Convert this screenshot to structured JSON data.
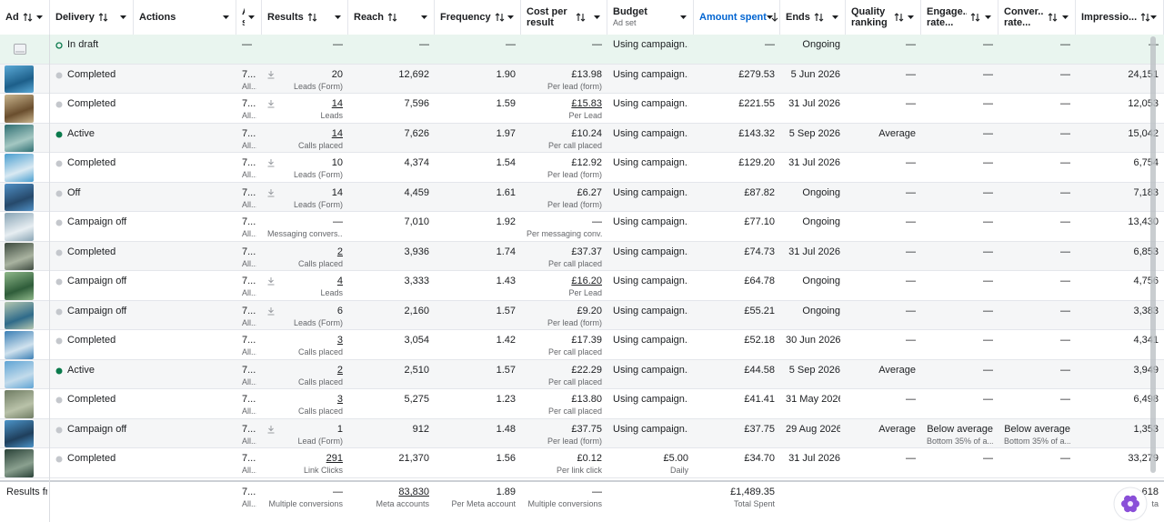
{
  "columns": [
    {
      "label": "Ad",
      "sortable": true
    },
    {
      "label": "Delivery",
      "sortable": true
    },
    {
      "label": "Actions"
    },
    {
      "label": "A... s..."
    },
    {
      "label": "Results",
      "sortable": true
    },
    {
      "label": "Reach",
      "sortable": true
    },
    {
      "label": "Frequency",
      "sortable": true
    },
    {
      "label": "Cost per result",
      "sortable": true
    },
    {
      "label": "Budget",
      "sub": "Ad set"
    },
    {
      "label": "Amount spent",
      "sort": "descending"
    },
    {
      "label": "Ends",
      "sortable": true
    },
    {
      "label": "Quality ranking",
      "sortable": true
    },
    {
      "label": "Engage... rate...",
      "sortable": true
    },
    {
      "label": "Conver... rate...",
      "sortable": true
    },
    {
      "label": "Impressio...",
      "sortable": true
    }
  ],
  "rows": [
    {
      "delivery": "In draft",
      "ad_id": "—",
      "results": "—",
      "reach": "—",
      "frequency": "—",
      "cost": "—",
      "budget": "Using campaign...",
      "amount": "—",
      "ends": "Ongoing",
      "quality": "—",
      "engage": "—",
      "conver": "—",
      "impressions": "—"
    },
    {
      "delivery": "Completed",
      "ad_id": "7...",
      "ad_id_sub": "All...",
      "results": "20",
      "results_sub": "Leads (Form)",
      "reach": "12,692",
      "frequency": "1.90",
      "cost": "£13.98",
      "cost_sub": "Per lead (form)",
      "budget": "Using campaign...",
      "amount": "£279.53",
      "ends": "5 Jun 2026",
      "quality": "—",
      "engage": "—",
      "conver": "—",
      "impressions": "24,151"
    },
    {
      "delivery": "Completed",
      "ad_id": "7...",
      "ad_id_sub": "All...",
      "results": "14",
      "results_link": true,
      "results_sub": "Leads",
      "reach": "7,596",
      "frequency": "1.59",
      "cost": "£15.83",
      "cost_link": true,
      "cost_sub": "Per Lead",
      "budget": "Using campaign...",
      "amount": "£221.55",
      "ends": "31 Jul 2026",
      "quality": "—",
      "engage": "—",
      "conver": "—",
      "impressions": "12,053"
    },
    {
      "delivery": "Active",
      "ad_id": "7...",
      "ad_id_sub": "All...",
      "results": "14",
      "results_link": true,
      "results_sub": "Calls placed",
      "reach": "7,626",
      "frequency": "1.97",
      "cost": "£10.24",
      "cost_sub": "Per call placed",
      "budget": "Using campaign...",
      "amount": "£143.32",
      "ends": "5 Sep 2026",
      "quality": "Average",
      "engage": "—",
      "conver": "—",
      "impressions": "15,042"
    },
    {
      "delivery": "Completed",
      "ad_id": "7...",
      "ad_id_sub": "All...",
      "results": "10",
      "results_sub": "Leads (Form)",
      "reach": "4,374",
      "frequency": "1.54",
      "cost": "£12.92",
      "cost_sub": "Per lead (form)",
      "budget": "Using campaign...",
      "amount": "£129.20",
      "ends": "31 Jul 2026",
      "quality": "—",
      "engage": "—",
      "conver": "—",
      "impressions": "6,754"
    },
    {
      "delivery": "Off",
      "ad_id": "7...",
      "ad_id_sub": "All...",
      "results": "14",
      "results_sub": "Leads (Form)",
      "reach": "4,459",
      "frequency": "1.61",
      "cost": "£6.27",
      "cost_sub": "Per lead (form)",
      "budget": "Using campaign...",
      "amount": "£87.82",
      "ends": "Ongoing",
      "quality": "—",
      "engage": "—",
      "conver": "—",
      "impressions": "7,183"
    },
    {
      "delivery": "Campaign off",
      "ad_id": "7...",
      "ad_id_sub": "All...",
      "results": "—",
      "results_sub": "Messaging convers...",
      "reach": "7,010",
      "frequency": "1.92",
      "cost": "—",
      "cost_sub": "Per messaging conv...",
      "budget": "Using campaign...",
      "amount": "£77.10",
      "ends": "Ongoing",
      "quality": "—",
      "engage": "—",
      "conver": "—",
      "impressions": "13,430"
    },
    {
      "delivery": "Completed",
      "ad_id": "7...",
      "ad_id_sub": "All...",
      "results": "2",
      "results_link": true,
      "results_sub": "Calls placed",
      "reach": "3,936",
      "frequency": "1.74",
      "cost": "£37.37",
      "cost_sub": "Per call placed",
      "budget": "Using campaign...",
      "amount": "£74.73",
      "ends": "31 Jul 2026",
      "quality": "—",
      "engage": "—",
      "conver": "—",
      "impressions": "6,853"
    },
    {
      "delivery": "Campaign off",
      "ad_id": "7...",
      "ad_id_sub": "All...",
      "results": "4",
      "results_link": true,
      "results_sub": "Leads",
      "reach": "3,333",
      "frequency": "1.43",
      "cost": "£16.20",
      "cost_link": true,
      "cost_sub": "Per Lead",
      "budget": "Using campaign...",
      "amount": "£64.78",
      "ends": "Ongoing",
      "quality": "—",
      "engage": "—",
      "conver": "—",
      "impressions": "4,756"
    },
    {
      "delivery": "Campaign off",
      "ad_id": "7...",
      "ad_id_sub": "All...",
      "results": "6",
      "results_sub": "Leads (Form)",
      "reach": "2,160",
      "frequency": "1.57",
      "cost": "£9.20",
      "cost_sub": "Per lead (form)",
      "budget": "Using campaign...",
      "amount": "£55.21",
      "ends": "Ongoing",
      "quality": "—",
      "engage": "—",
      "conver": "—",
      "impressions": "3,383"
    },
    {
      "delivery": "Completed",
      "ad_id": "7...",
      "ad_id_sub": "All...",
      "results": "3",
      "results_link": true,
      "results_sub": "Calls placed",
      "reach": "3,054",
      "frequency": "1.42",
      "cost": "£17.39",
      "cost_sub": "Per call placed",
      "budget": "Using campaign...",
      "amount": "£52.18",
      "ends": "30 Jun 2026",
      "quality": "—",
      "engage": "—",
      "conver": "—",
      "impressions": "4,341"
    },
    {
      "delivery": "Active",
      "ad_id": "7...",
      "ad_id_sub": "All...",
      "results": "2",
      "results_link": true,
      "results_sub": "Calls placed",
      "reach": "2,510",
      "frequency": "1.57",
      "cost": "£22.29",
      "cost_sub": "Per call placed",
      "budget": "Using campaign...",
      "amount": "£44.58",
      "ends": "5 Sep 2026",
      "quality": "Average",
      "engage": "—",
      "conver": "—",
      "impressions": "3,949"
    },
    {
      "delivery": "Completed",
      "ad_id": "7...",
      "ad_id_sub": "All...",
      "results": "3",
      "results_link": true,
      "results_sub": "Calls placed",
      "reach": "5,275",
      "frequency": "1.23",
      "cost": "£13.80",
      "cost_sub": "Per call placed",
      "budget": "Using campaign...",
      "amount": "£41.41",
      "ends": "31 May 2026",
      "quality": "—",
      "engage": "—",
      "conver": "—",
      "impressions": "6,498"
    },
    {
      "delivery": "Campaign off",
      "ad_id": "7...",
      "ad_id_sub": "All...",
      "results": "1",
      "results_sub": "Lead (Form)",
      "reach": "912",
      "frequency": "1.48",
      "cost": "£37.75",
      "cost_sub": "Per lead (form)",
      "budget": "Using campaign...",
      "amount": "£37.75",
      "ends": "29 Aug 2026",
      "quality": "Average",
      "engage": "Below average",
      "engage_sub": "Bottom 35% of a...",
      "conver": "Below average",
      "conver_sub": "Bottom 35% of a...",
      "impressions": "1,353"
    },
    {
      "delivery": "Completed",
      "ad_id": "7...",
      "ad_id_sub": "All...",
      "results": "291",
      "results_link": true,
      "results_sub": "Link Clicks",
      "reach": "21,370",
      "frequency": "1.56",
      "cost": "£0.12",
      "cost_sub": "Per link click",
      "budget": "£5.00",
      "budget_sub": "Daily",
      "amount": "£34.70",
      "ends": "31 Jul 2026",
      "quality": "—",
      "engage": "—",
      "conver": "—",
      "impressions": "33,279"
    }
  ],
  "footer": {
    "ad": "Results fr",
    "ad_id": "7...",
    "ad_id_sub": "All...",
    "results": "—",
    "results_sub": "Multiple conversions",
    "reach": "83,830",
    "reach_link": true,
    "reach_sub": "Meta accounts",
    "frequency": "1.89",
    "frequency_sub": "Per Meta account",
    "cost": "—",
    "cost_sub": "Multiple conversions",
    "amount": "£1,489.35",
    "amount_sub": "Total Spent",
    "impressions": "618",
    "impressions_sub": "ta"
  }
}
